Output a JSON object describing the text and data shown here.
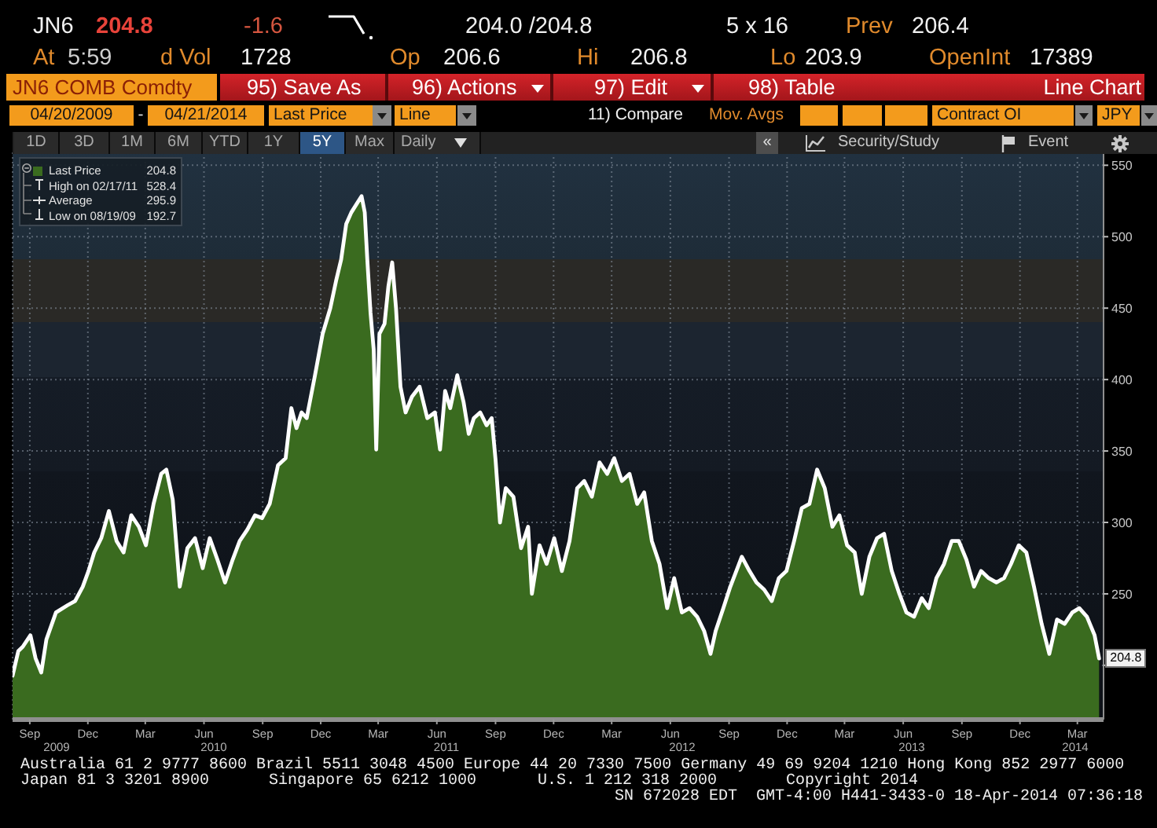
{
  "chart_data": {
    "type": "area",
    "x": [
      "2009-08-19",
      "2009-08-28",
      "2009-09-04",
      "2009-09-16",
      "2009-09-24",
      "2009-10-03",
      "2009-10-11",
      "2009-10-26",
      "2009-11-13",
      "2009-11-25",
      "2009-12-07",
      "2009-12-16",
      "2009-12-25",
      "2010-01-05",
      "2010-01-17",
      "2010-01-29",
      "2010-02-09",
      "2010-02-21",
      "2010-03-05",
      "2010-03-16",
      "2010-03-28",
      "2010-04-09",
      "2010-04-17",
      "2010-04-27",
      "2010-05-08",
      "2010-05-20",
      "2010-06-01",
      "2010-06-13",
      "2010-06-24",
      "2010-07-06",
      "2010-07-18",
      "2010-07-30",
      "2010-08-10",
      "2010-08-22",
      "2010-09-03",
      "2010-09-14",
      "2010-09-26",
      "2010-10-09",
      "2010-10-21",
      "2010-10-30",
      "2010-11-07",
      "2010-11-15",
      "2010-11-23",
      "2010-12-06",
      "2010-12-18",
      "2010-12-30",
      "2011-01-08",
      "2011-01-16",
      "2011-01-24",
      "2011-02-01",
      "2011-02-17",
      "2011-02-22",
      "2011-02-26",
      "2011-03-03",
      "2011-03-08",
      "2011-03-12",
      "2011-03-17",
      "2011-03-25",
      "2011-03-31",
      "2011-04-06",
      "2011-04-12",
      "2011-04-19",
      "2011-04-27",
      "2011-05-07",
      "2011-05-19",
      "2011-05-31",
      "2011-06-12",
      "2011-06-20",
      "2011-06-28",
      "2011-07-06",
      "2011-07-17",
      "2011-07-27",
      "2011-08-04",
      "2011-08-12",
      "2011-08-22",
      "2011-09-01",
      "2011-09-09",
      "2011-09-15",
      "2011-09-22",
      "2011-10-01",
      "2011-10-13",
      "2011-10-25",
      "2011-11-05",
      "2011-11-11",
      "2011-11-23",
      "2011-12-04",
      "2011-12-16",
      "2011-12-28",
      "2012-01-09",
      "2012-01-21",
      "2012-02-01",
      "2012-02-13",
      "2012-02-25",
      "2012-03-08",
      "2012-03-19",
      "2012-03-31",
      "2012-04-12",
      "2012-04-24",
      "2012-05-05",
      "2012-05-17",
      "2012-05-29",
      "2012-06-10",
      "2012-06-21",
      "2012-07-03",
      "2012-07-15",
      "2012-07-27",
      "2012-08-07",
      "2012-08-17",
      "2012-08-25",
      "2012-09-06",
      "2012-09-17",
      "2012-10-05",
      "2012-10-17",
      "2012-10-28",
      "2012-11-09",
      "2012-11-21",
      "2012-12-02",
      "2012-12-14",
      "2012-12-26",
      "2013-01-07",
      "2013-01-19",
      "2013-01-31",
      "2013-02-12",
      "2013-02-24",
      "2013-03-07",
      "2013-03-19",
      "2013-03-31",
      "2013-04-11",
      "2013-04-23",
      "2013-05-05",
      "2013-05-16",
      "2013-05-28",
      "2013-06-09",
      "2013-06-20",
      "2013-07-02",
      "2013-07-14",
      "2013-07-25",
      "2013-08-06",
      "2013-08-18",
      "2013-08-30",
      "2013-09-10",
      "2013-09-22",
      "2013-10-04",
      "2013-10-15",
      "2013-10-27",
      "2013-11-08",
      "2013-11-20",
      "2013-12-01",
      "2013-12-13",
      "2013-12-25",
      "2014-01-06",
      "2014-01-18",
      "2014-01-30",
      "2014-02-11",
      "2014-02-23",
      "2014-03-07",
      "2014-03-18",
      "2014-03-30",
      "2014-04-11",
      "2014-04-18"
    ],
    "series": [
      {
        "name": "Last Price",
        "color": "#3a6b1f",
        "values": [
          192.7,
          210,
          213,
          221,
          205,
          195,
          218,
          237,
          242,
          245,
          255,
          266,
          279,
          289,
          308,
          287,
          279,
          305,
          297,
          284,
          313,
          334,
          337,
          316,
          255,
          282,
          289,
          268,
          289,
          274,
          258,
          274,
          287,
          295,
          305,
          303,
          313,
          340,
          345,
          380,
          366,
          377,
          373,
          403,
          432,
          450,
          469,
          484,
          509,
          517,
          528.4,
          517,
          484,
          447,
          421,
          351,
          432,
          439,
          465,
          482,
          450,
          395,
          377,
          388,
          395,
          373,
          377,
          351,
          392,
          380,
          403,
          384,
          362,
          373,
          377,
          368,
          373,
          344,
          300,
          324,
          318,
          282,
          297,
          250,
          284,
          271,
          289,
          266,
          287,
          324,
          329,
          318,
          342,
          334,
          345,
          329,
          334,
          313,
          321,
          287,
          271,
          240,
          261,
          237,
          240,
          234,
          224,
          208,
          224,
          240,
          255,
          276,
          266,
          258,
          253,
          245,
          261,
          266,
          287,
          310,
          313,
          337,
          324,
          297,
          305,
          284,
          279,
          250,
          276,
          289,
          292,
          266,
          250,
          237,
          234,
          247,
          240,
          261,
          271,
          287,
          287,
          274,
          255,
          266,
          261,
          258,
          261,
          271,
          284,
          279,
          255,
          229,
          208,
          232,
          229,
          237,
          240,
          234,
          221,
          204.8
        ]
      }
    ],
    "xlim": [
      "2009-08-19",
      "2014-04-25"
    ],
    "xticks": [
      {
        "value": "2009-09-15",
        "label": "Sep"
      },
      {
        "value": "2009-12-15",
        "label": "Dec"
      },
      {
        "value": "2010-03-15",
        "label": "Mar"
      },
      {
        "value": "2010-06-15",
        "label": "Jun"
      },
      {
        "value": "2010-09-15",
        "label": "Sep"
      },
      {
        "value": "2010-12-15",
        "label": "Dec"
      },
      {
        "value": "2011-03-15",
        "label": "Mar"
      },
      {
        "value": "2011-06-15",
        "label": "Jun"
      },
      {
        "value": "2011-09-15",
        "label": "Sep"
      },
      {
        "value": "2011-12-15",
        "label": "Dec"
      },
      {
        "value": "2012-03-15",
        "label": "Mar"
      },
      {
        "value": "2012-06-15",
        "label": "Jun"
      },
      {
        "value": "2012-09-15",
        "label": "Sep"
      },
      {
        "value": "2012-12-15",
        "label": "Dec"
      },
      {
        "value": "2013-03-15",
        "label": "Mar"
      },
      {
        "value": "2013-06-15",
        "label": "Jun"
      },
      {
        "value": "2013-09-15",
        "label": "Sep"
      },
      {
        "value": "2013-12-15",
        "label": "Dec"
      },
      {
        "value": "2014-03-15",
        "label": "Mar"
      }
    ],
    "ylim": [
      162,
      559
    ],
    "yticks": [
      {
        "value": 200,
        "label": null
      },
      250,
      300,
      350,
      400,
      450,
      500,
      550
    ],
    "grid": true,
    "legend": "top left",
    "annotations": [
      "JN6",
      "204.8",
      "-1.6",
      "204.0 /204.8",
      "5 x 16",
      "Prev",
      "206.4",
      "At",
      "5:59",
      "d Vol",
      "1728",
      "Op",
      "206.6",
      "Hi",
      "206.8",
      "Lo",
      "203.9",
      "OpenInt",
      "17389",
      "JN6 COMB Comdty",
      "95) Save As",
      "96) Actions",
      "97) Edit",
      "98) Table",
      "Line Chart",
      "04/20/2009",
      "-",
      "04/21/2014",
      "Last Price",
      "Line",
      "11) Compare",
      "Mov. Avgs",
      "Contract OI",
      "JPY",
      "1D",
      "3D",
      "1M",
      "6M",
      "YTD",
      "1Y",
      "5Y",
      "Max",
      "Daily",
      "«",
      "Security/Study",
      "Event",
      "204.8",
      "High on 02/17/11",
      "528.4",
      "Average",
      "295.9",
      "Low on 08/19/09",
      "192.7",
      "Australia 61 2 9777 8600 Brazil 5511 3048 4500 Europe 44 20 7330 7500 Germany 49 69 9204 1210 Hong Kong 852 2977 6000",
      "Japan 81 3 3201 8900",
      "Singapore 65 6212 1000",
      "U.S. 1 212 318 2000",
      "Copyright 2014",
      "SN 672028 EDT  GMT-4:00 H441-3433-0 18-Apr-2014 07:36:18",
      "2009",
      "2010",
      "2011",
      "2012",
      "2013",
      "2014",
      {
        "text": "204.8",
        "x": "2014-04-18",
        "y": 204.8
      }
    ]
  }
}
